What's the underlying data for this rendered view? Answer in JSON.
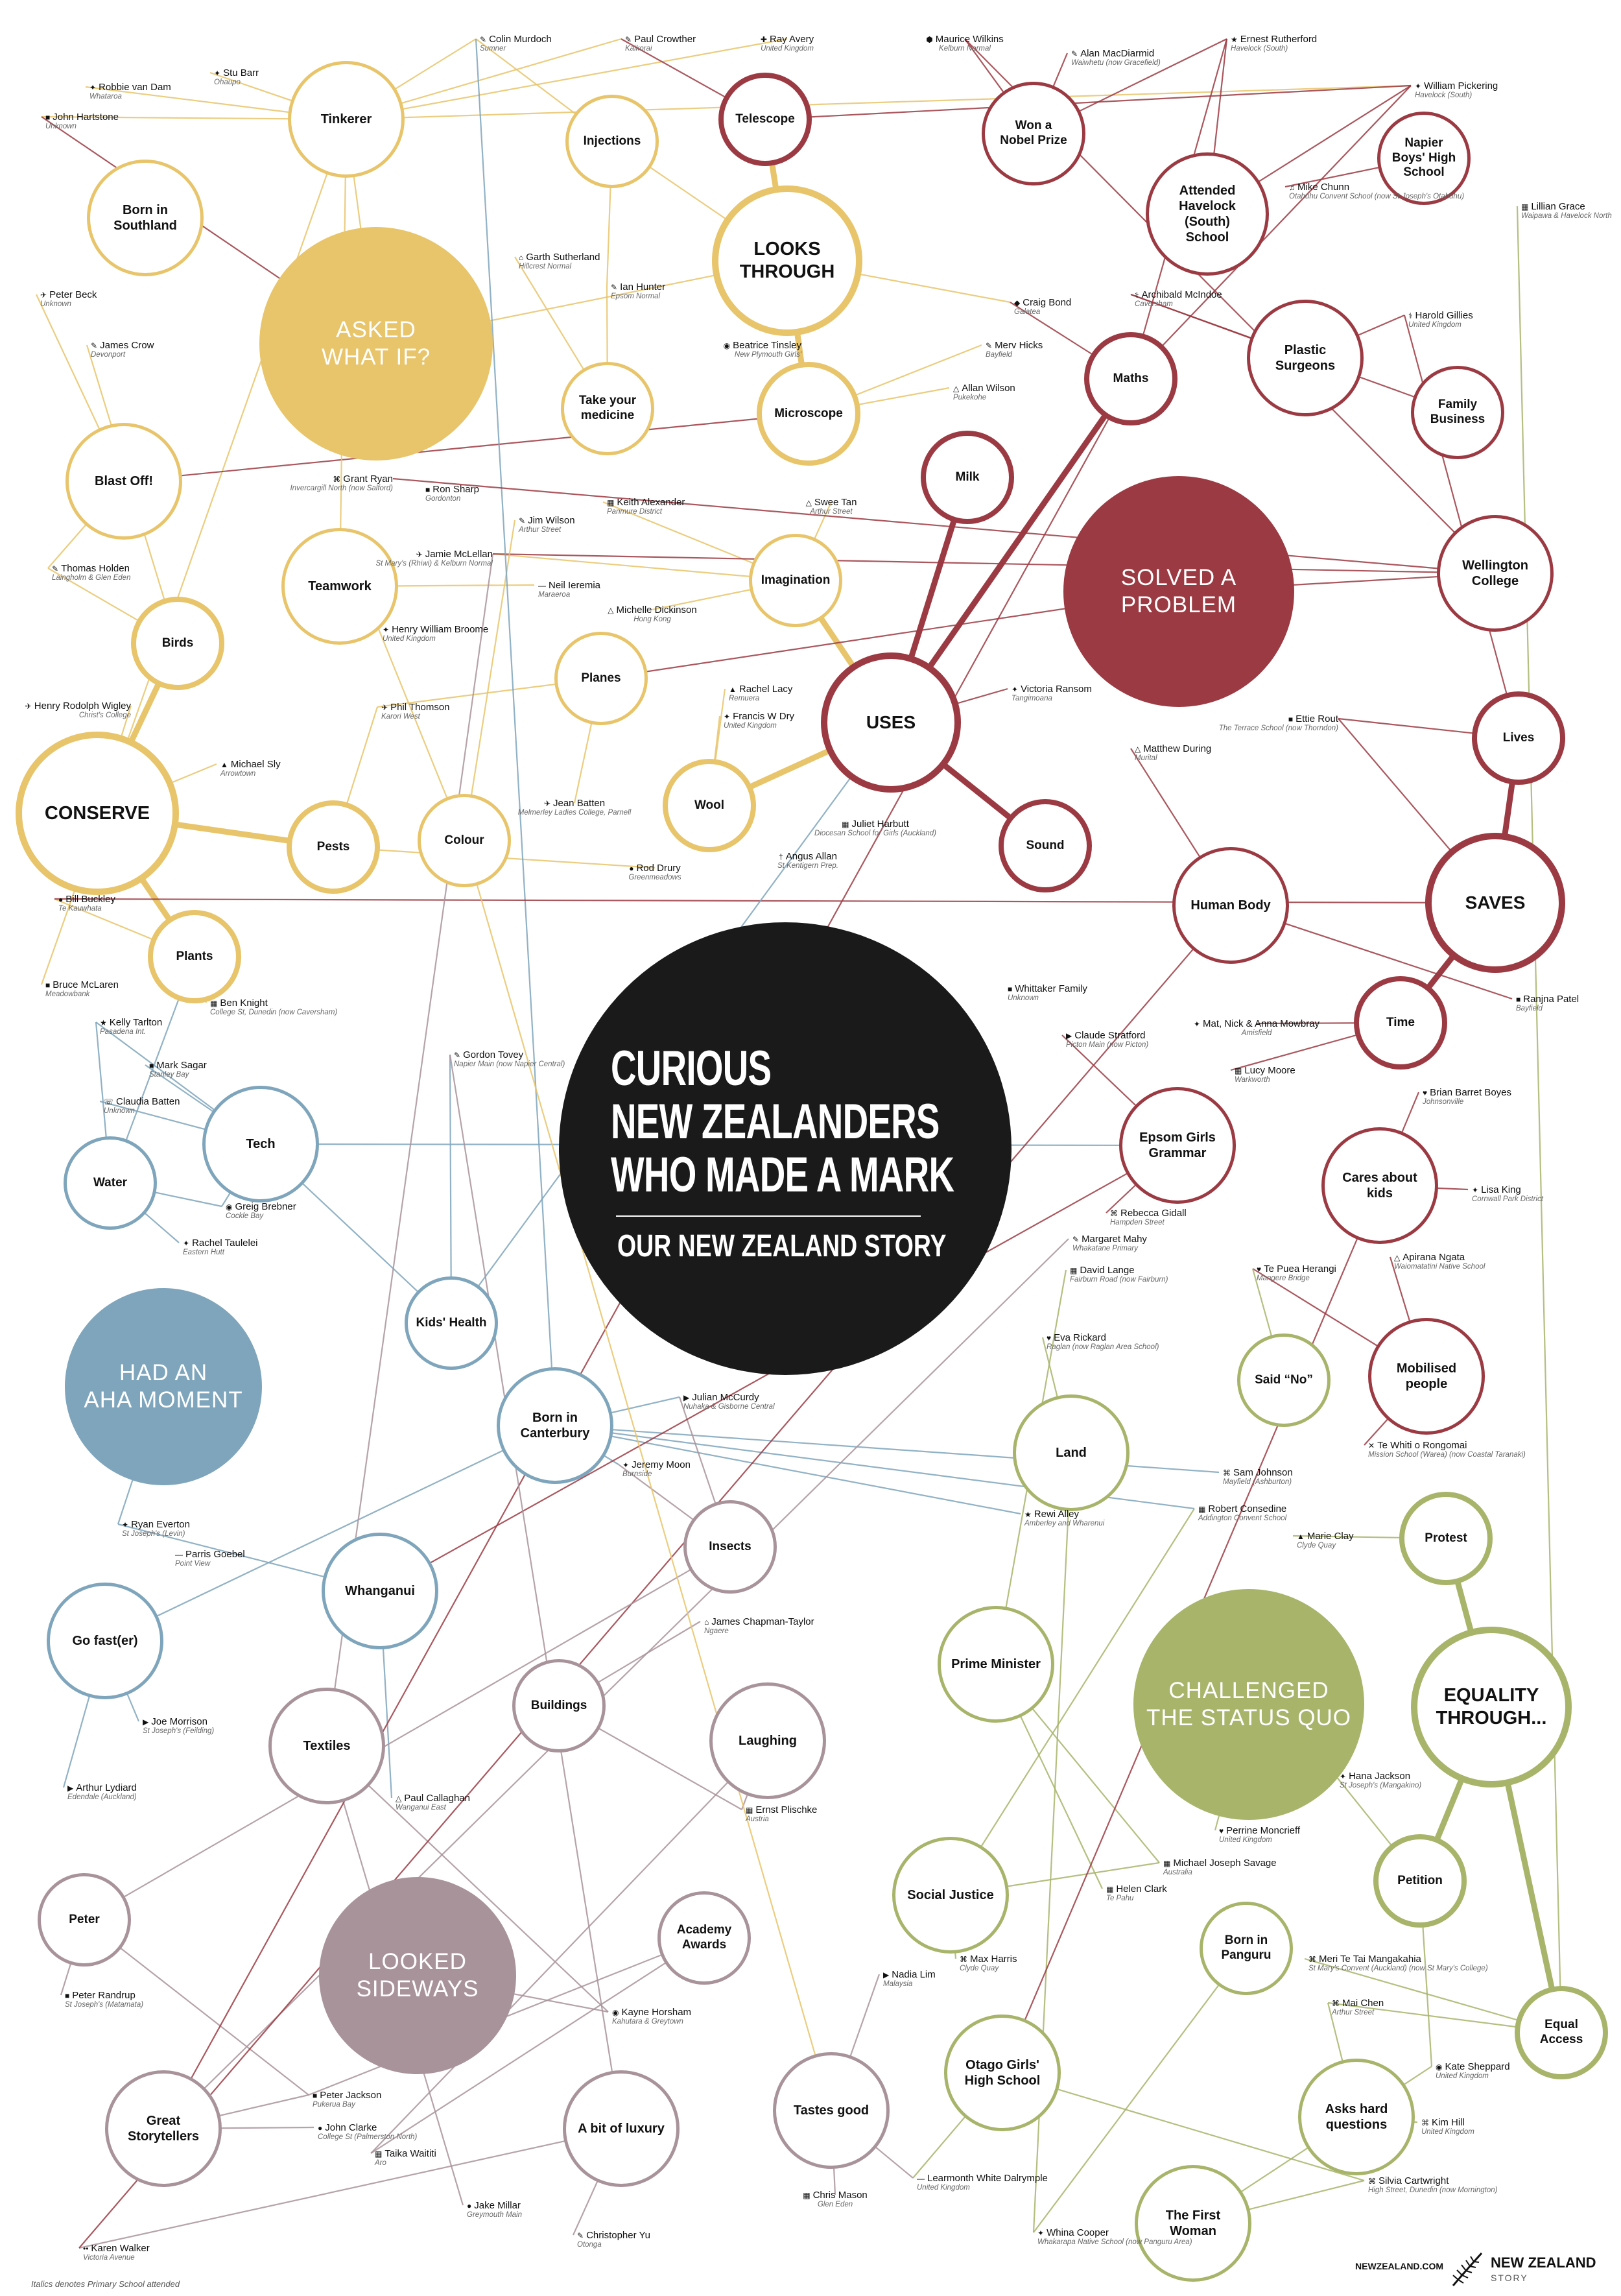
{
  "title": {
    "line1": "CURIOUS",
    "line2": "NEW ZEALANDERS",
    "line3": "WHO MADE A MARK",
    "subtitle": "OUR NEW ZEALAND STORY"
  },
  "footnote": "Italics denotes Primary School attended",
  "site": "NEWZEALAND.COM",
  "brand": {
    "line1": "NEW ZEALAND",
    "line2": "STORY"
  },
  "colors": {
    "yellow": "#e8c46a",
    "red": "#9b3a42",
    "blue": "#7ea5bb",
    "purple": "#a9939b",
    "green": "#a7b46a",
    "title_bg": "#1a1a1a"
  },
  "themes": [
    {
      "id": "asked-what-if",
      "label": "ASKED\nWHAT IF?",
      "color": "yellow"
    },
    {
      "id": "solved-a-problem",
      "label": "SOLVED A\nPROBLEM",
      "color": "red"
    },
    {
      "id": "had-an-aha-moment",
      "label": "HAD AN\nAHA MOMENT",
      "color": "blue"
    },
    {
      "id": "looked-sideways",
      "label": "LOOKED\nSIDEWAYS",
      "color": "purple"
    },
    {
      "id": "challenged-the-status-quo",
      "label": "CHALLENGED\nTHE STATUS QUO",
      "color": "green"
    }
  ],
  "topics": [
    {
      "id": "tinkerer",
      "label": "Tinkerer",
      "color": "yellow"
    },
    {
      "id": "injections",
      "label": "Injections",
      "color": "yellow"
    },
    {
      "id": "telescope",
      "label": "Telescope",
      "color": "red"
    },
    {
      "id": "won-nobel",
      "label": "Won a\nNobel Prize",
      "color": "red"
    },
    {
      "id": "born-southland",
      "label": "Born in\nSouthland",
      "color": "yellow"
    },
    {
      "id": "looks-through",
      "label": "LOOKS\nTHROUGH",
      "color": "yellow"
    },
    {
      "id": "attended-havelock",
      "label": "Attended\nHavelock\n(South)\nSchool",
      "color": "red"
    },
    {
      "id": "napier-boys",
      "label": "Napier\nBoys' High\nSchool",
      "color": "red"
    },
    {
      "id": "take-medicine",
      "label": "Take your\nmedicine",
      "color": "yellow"
    },
    {
      "id": "microscope",
      "label": "Microscope",
      "color": "yellow"
    },
    {
      "id": "maths",
      "label": "Maths",
      "color": "red"
    },
    {
      "id": "plastic-surgeons",
      "label": "Plastic\nSurgeons",
      "color": "red"
    },
    {
      "id": "family-business",
      "label": "Family\nBusiness",
      "color": "red"
    },
    {
      "id": "blast-off",
      "label": "Blast Off!",
      "color": "yellow"
    },
    {
      "id": "milk",
      "label": "Milk",
      "color": "red"
    },
    {
      "id": "teamwork",
      "label": "Teamwork",
      "color": "yellow"
    },
    {
      "id": "imagination",
      "label": "Imagination",
      "color": "yellow"
    },
    {
      "id": "wellington-college",
      "label": "Wellington\nCollege",
      "color": "red"
    },
    {
      "id": "birds",
      "label": "Birds",
      "color": "yellow"
    },
    {
      "id": "planes",
      "label": "Planes",
      "color": "yellow"
    },
    {
      "id": "uses",
      "label": "USES",
      "color": "red"
    },
    {
      "id": "lives",
      "label": "Lives",
      "color": "red"
    },
    {
      "id": "conserve",
      "label": "CONSERVE",
      "color": "yellow"
    },
    {
      "id": "pests",
      "label": "Pests",
      "color": "yellow"
    },
    {
      "id": "colour",
      "label": "Colour",
      "color": "yellow"
    },
    {
      "id": "wool",
      "label": "Wool",
      "color": "yellow"
    },
    {
      "id": "sound",
      "label": "Sound",
      "color": "red"
    },
    {
      "id": "human-body",
      "label": "Human Body",
      "color": "red"
    },
    {
      "id": "saves",
      "label": "SAVES",
      "color": "red"
    },
    {
      "id": "plants",
      "label": "Plants",
      "color": "yellow"
    },
    {
      "id": "time",
      "label": "Time",
      "color": "red"
    },
    {
      "id": "tech",
      "label": "Tech",
      "color": "blue"
    },
    {
      "id": "epsom-girls",
      "label": "Epsom Girls\nGrammar",
      "color": "red"
    },
    {
      "id": "water",
      "label": "Water",
      "color": "blue"
    },
    {
      "id": "cares-about-kids",
      "label": "Cares about\nkids",
      "color": "red"
    },
    {
      "id": "kids-health",
      "label": "Kids' Health",
      "color": "blue"
    },
    {
      "id": "said-no",
      "label": "Said “No”",
      "color": "green"
    },
    {
      "id": "mobilised-people",
      "label": "Mobilised\npeople",
      "color": "red"
    },
    {
      "id": "born-canterbury",
      "label": "Born in\nCanterbury",
      "color": "blue"
    },
    {
      "id": "land",
      "label": "Land",
      "color": "green"
    },
    {
      "id": "insects",
      "label": "Insects",
      "color": "purple"
    },
    {
      "id": "protest",
      "label": "Protest",
      "color": "green"
    },
    {
      "id": "whanganui",
      "label": "Whanganui",
      "color": "blue"
    },
    {
      "id": "go-faster",
      "label": "Go fast(er)",
      "color": "blue"
    },
    {
      "id": "prime-minister",
      "label": "Prime Minister",
      "color": "green"
    },
    {
      "id": "equality-through",
      "label": "EQUALITY\nTHROUGH...",
      "color": "green"
    },
    {
      "id": "buildings",
      "label": "Buildings",
      "color": "purple"
    },
    {
      "id": "textiles",
      "label": "Textiles",
      "color": "purple"
    },
    {
      "id": "laughing",
      "label": "Laughing",
      "color": "purple"
    },
    {
      "id": "social-justice",
      "label": "Social Justice",
      "color": "green"
    },
    {
      "id": "petition",
      "label": "Petition",
      "color": "green"
    },
    {
      "id": "peter",
      "label": "Peter",
      "color": "purple"
    },
    {
      "id": "academy-awards",
      "label": "Academy\nAwards",
      "color": "purple"
    },
    {
      "id": "born-panguru",
      "label": "Born in\nPanguru",
      "color": "green"
    },
    {
      "id": "equal-access",
      "label": "Equal\nAccess",
      "color": "green"
    },
    {
      "id": "otago-girls",
      "label": "Otago Girls'\nHigh School",
      "color": "green"
    },
    {
      "id": "tastes-good",
      "label": "Tastes good",
      "color": "purple"
    },
    {
      "id": "asks-hard-questions",
      "label": "Asks hard\nquestions",
      "color": "green"
    },
    {
      "id": "great-storytellers",
      "label": "Great\nStorytellers",
      "color": "purple"
    },
    {
      "id": "bit-of-luxury",
      "label": "A bit of luxury",
      "color": "purple"
    },
    {
      "id": "first-woman",
      "label": "The First\nWoman",
      "color": "green"
    }
  ],
  "people": [
    {
      "id": "colin-murdoch",
      "name": "Colin Murdoch",
      "school": "Sumner",
      "icon": "✎"
    },
    {
      "id": "paul-crowther",
      "name": "Paul Crowther",
      "school": "Kaikorai",
      "icon": "✎"
    },
    {
      "id": "ray-avery",
      "name": "Ray Avery",
      "school": "United Kingdom",
      "icon": "✚"
    },
    {
      "id": "maurice-wilkins",
      "name": "Maurice Wilkins",
      "school": "Kelburn Normal",
      "icon": "⬢"
    },
    {
      "id": "alan-macdiarmid",
      "name": "Alan MacDiarmid",
      "school": "Waiwhetu (now Gracefield)",
      "icon": "✎"
    },
    {
      "id": "ernest-rutherford",
      "name": "Ernest Rutherford",
      "school": "Havelock (South)",
      "icon": "★"
    },
    {
      "id": "robbie-van-dam",
      "name": "Robbie van Dam",
      "school": "Whataroa",
      "icon": "✦"
    },
    {
      "id": "stu-barr",
      "name": "Stu Barr",
      "school": "Ohaupo",
      "icon": "✦"
    },
    {
      "id": "william-pickering",
      "name": "William Pickering",
      "school": "Havelock (South)",
      "icon": "✦"
    },
    {
      "id": "john-hartstone",
      "name": "John Hartstone",
      "school": "Unknown",
      "icon": "■"
    },
    {
      "id": "mike-chunn",
      "name": "Mike Chunn",
      "school": "Otahuhu Convent School (now St Joseph's Otahuhu)",
      "icon": "♫"
    },
    {
      "id": "lillian-grace",
      "name": "Lillian Grace",
      "school": "Waipawa & Havelock North",
      "icon": "▦"
    },
    {
      "id": "garth-sutherland",
      "name": "Garth Sutherland",
      "school": "Hillcrest Normal",
      "icon": "⌂"
    },
    {
      "id": "ian-hunter",
      "name": "Ian Hunter",
      "school": "Epsom Normal",
      "icon": "✎"
    },
    {
      "id": "peter-beck",
      "name": "Peter Beck",
      "school": "Unknown",
      "icon": "✈"
    },
    {
      "id": "craig-bond",
      "name": "Craig Bond",
      "school": "Galatea",
      "icon": "◆"
    },
    {
      "id": "archibald-mcindoe",
      "name": "Archibald McIndoe",
      "school": "Caversham",
      "icon": "⚕"
    },
    {
      "id": "harold-gillies",
      "name": "Harold Gillies",
      "school": "United Kingdom",
      "icon": "⚕"
    },
    {
      "id": "james-crow",
      "name": "James Crow",
      "school": "Devonport",
      "icon": "✎"
    },
    {
      "id": "beatrice-tinsley",
      "name": "Beatrice Tinsley",
      "school": "New Plymouth Girls'",
      "icon": "◉"
    },
    {
      "id": "merv-hicks",
      "name": "Merv Hicks",
      "school": "Bayfield",
      "icon": "✎"
    },
    {
      "id": "allan-wilson",
      "name": "Allan Wilson",
      "school": "Pukekohe",
      "icon": "△"
    },
    {
      "id": "grant-ryan",
      "name": "Grant Ryan",
      "school": "Invercargill North (now Salford)",
      "icon": "⌘"
    },
    {
      "id": "ron-sharp",
      "name": "Ron Sharp",
      "school": "Gordonton",
      "icon": "■"
    },
    {
      "id": "keith-alexander",
      "name": "Keith Alexander",
      "school": "Panmure District",
      "icon": "▦"
    },
    {
      "id": "swee-tan",
      "name": "Swee Tan",
      "school": "Arthur Street",
      "icon": "△"
    },
    {
      "id": "jim-wilson",
      "name": "Jim Wilson",
      "school": "Arthur Street",
      "icon": "✎"
    },
    {
      "id": "thomas-holden",
      "name": "Thomas Holden",
      "school": "Laingholm & Glen Eden",
      "icon": "✎"
    },
    {
      "id": "jamie-mclellan",
      "name": "Jamie McLellan",
      "school": "St Mary's (Rhiwi) & Kelburn Normal",
      "icon": "✈"
    },
    {
      "id": "neil-ieremia",
      "name": "Neil Ieremia",
      "school": "Maraeroa",
      "icon": "—"
    },
    {
      "id": "michelle-dickinson",
      "name": "Michelle Dickinson",
      "school": "Hong Kong",
      "icon": "△"
    },
    {
      "id": "henry-william-broome",
      "name": "Henry William Broome",
      "school": "United Kingdom",
      "icon": "✦"
    },
    {
      "id": "rachel-lacy",
      "name": "Rachel Lacy",
      "school": "Remuera",
      "icon": "▲"
    },
    {
      "id": "victoria-ransom",
      "name": "Victoria Ransom",
      "school": "Tangimoana",
      "icon": "✦"
    },
    {
      "id": "francis-w-dry",
      "name": "Francis W Dry",
      "school": "United Kingdom",
      "icon": "✦"
    },
    {
      "id": "ettie-rout",
      "name": "Ettie Rout",
      "school": "The Terrace School (now Thorndon)",
      "icon": "■"
    },
    {
      "id": "henry-rodolph-wigley",
      "name": "Henry Rodolph Wigley",
      "school": "Christ's College",
      "icon": "✈"
    },
    {
      "id": "phil-thomson",
      "name": "Phil Thomson",
      "school": "Karori West",
      "icon": "✈"
    },
    {
      "id": "michael-sly",
      "name": "Michael Sly",
      "school": "Arrowtown",
      "icon": "▲"
    },
    {
      "id": "matthew-during",
      "name": "Matthew During",
      "school": "Murital",
      "icon": "△"
    },
    {
      "id": "jean-batten",
      "name": "Jean Batten",
      "school": "Melmerley Ladies College, Parnell",
      "icon": "✈"
    },
    {
      "id": "juliet-harbutt",
      "name": "Juliet Harbutt",
      "school": "Diocesan School for Girls (Auckland)",
      "icon": "▦"
    },
    {
      "id": "angus-allan",
      "name": "Angus Allan",
      "school": "St Kentigern Prep.",
      "icon": "†"
    },
    {
      "id": "rod-drury",
      "name": "Rod Drury",
      "school": "Greenmeadows",
      "icon": "●"
    },
    {
      "id": "bill-buckley",
      "name": "Bill Buckley",
      "school": "Te Kauwhata",
      "icon": "●"
    },
    {
      "id": "bruce-mclaren",
      "name": "Bruce McLaren",
      "school": "Meadowbank",
      "icon": "■"
    },
    {
      "id": "ben-knight",
      "name": "Ben Knight",
      "school": "College St, Dunedin (now Caversham)",
      "icon": "▦"
    },
    {
      "id": "whittaker-family",
      "name": "Whittaker Family",
      "school": "Unknown",
      "icon": "■"
    },
    {
      "id": "ranjna-patel",
      "name": "Ranjna Patel",
      "school": "Bayfield",
      "icon": "■"
    },
    {
      "id": "kelly-tarlton",
      "name": "Kelly Tarlton",
      "school": "Pasadena Int.",
      "icon": "★"
    },
    {
      "id": "claude-stratford",
      "name": "Claude Stratford",
      "school": "Picton Main (now Picton)",
      "icon": "▶"
    },
    {
      "id": "mat-nick-anna-mowbray",
      "name": "Mat, Nick & Anna Mowbray",
      "school": "Amisfield",
      "icon": "✦"
    },
    {
      "id": "mark-sagar",
      "name": "Mark Sagar",
      "school": "Stanley Bay",
      "icon": "■"
    },
    {
      "id": "gordon-tovey",
      "name": "Gordon Tovey",
      "school": "Napier Main (now Napier Central)",
      "icon": "✎"
    },
    {
      "id": "lucy-moore",
      "name": "Lucy Moore",
      "school": "Warkworth",
      "icon": "▦"
    },
    {
      "id": "claudia-batten",
      "name": "Claudia Batten",
      "school": "Unknown",
      "icon": "☏"
    },
    {
      "id": "brian-barret-boyes",
      "name": "Brian Barret Boyes",
      "school": "Johnsonville",
      "icon": "♥"
    },
    {
      "id": "greig-brebner",
      "name": "Greig Brebner",
      "school": "Cockle Bay",
      "icon": "◉"
    },
    {
      "id": "rebecca-gidall",
      "name": "Rebecca Gidall",
      "school": "Hampden Street",
      "icon": "⌘"
    },
    {
      "id": "lisa-king",
      "name": "Lisa King",
      "school": "Cornwall Park District",
      "icon": "✦"
    },
    {
      "id": "rachel-taulelei",
      "name": "Rachel Taulelei",
      "school": "Eastern Hutt",
      "icon": "✦"
    },
    {
      "id": "margaret-mahy",
      "name": "Margaret Mahy",
      "school": "Whakatane Primary",
      "icon": "✎"
    },
    {
      "id": "david-lange",
      "name": "David Lange",
      "school": "Fairburn Road (now Fairburn)",
      "icon": "▦"
    },
    {
      "id": "te-puea-herangi",
      "name": "Te Puea Herangi",
      "school": "Mangere Bridge",
      "icon": "♥"
    },
    {
      "id": "apirana-ngata",
      "name": "Apirana Ngata",
      "school": "Waiomatatini Native School",
      "icon": "△"
    },
    {
      "id": "eva-rickard",
      "name": "Eva Rickard",
      "school": "Raglan (now Raglan Area School)",
      "icon": "♥"
    },
    {
      "id": "julian-mccurdy",
      "name": "Julian McCurdy",
      "school": "Nuhaka & Gisborne Central",
      "icon": "▶"
    },
    {
      "id": "te-whiti-o-rongomai",
      "name": "Te Whiti o Rongomai",
      "school": "Mission School (Warea) (now Coastal Taranaki)",
      "icon": "✕"
    },
    {
      "id": "sam-johnson",
      "name": "Sam Johnson",
      "school": "Mayfield (Ashburton)",
      "icon": "⌘"
    },
    {
      "id": "jeremy-moon",
      "name": "Jeremy Moon",
      "school": "Burnside",
      "icon": "✦"
    },
    {
      "id": "rewi-alley",
      "name": "Rewi Alley",
      "school": "Amberley and Wharenui",
      "icon": "★"
    },
    {
      "id": "robert-consedine",
      "name": "Robert Consedine",
      "school": "Addington Convent School",
      "icon": "▦"
    },
    {
      "id": "ryan-everton",
      "name": "Ryan Everton",
      "school": "St Joseph's (Levin)",
      "icon": "✦"
    },
    {
      "id": "marie-clay",
      "name": "Marie Clay",
      "school": "Clyde Quay",
      "icon": "▲"
    },
    {
      "id": "parris-goebel",
      "name": "Parris Goebel",
      "school": "Point View",
      "icon": "—"
    },
    {
      "id": "james-chapman-taylor",
      "name": "James Chapman-Taylor",
      "school": "Ngaere",
      "icon": "⌂"
    },
    {
      "id": "joe-morrison",
      "name": "Joe Morrison",
      "school": "St Joseph's (Feilding)",
      "icon": "▶"
    },
    {
      "id": "arthur-lydiard",
      "name": "Arthur Lydiard",
      "school": "Edendale (Auckland)",
      "icon": "▶"
    },
    {
      "id": "ernst-plischke",
      "name": "Ernst Plischke",
      "school": "Austria",
      "icon": "▦"
    },
    {
      "id": "hana-jackson",
      "name": "Hana Jackson",
      "school": "St Joseph's (Mangakino)",
      "icon": "✦"
    },
    {
      "id": "paul-callaghan",
      "name": "Paul Callaghan",
      "school": "Wanganui East",
      "icon": "△"
    },
    {
      "id": "perrine-moncrieff",
      "name": "Perrine Moncrieff",
      "school": "United Kingdom",
      "icon": "♥"
    },
    {
      "id": "michael-joseph-savage",
      "name": "Michael Joseph Savage",
      "school": "Australia",
      "icon": "▦"
    },
    {
      "id": "helen-clark",
      "name": "Helen Clark",
      "school": "Te Pahu",
      "icon": "▦"
    },
    {
      "id": "max-harris",
      "name": "Max Harris",
      "school": "Clyde Quay",
      "icon": "⌘"
    },
    {
      "id": "meri-te-tai-mangakahia",
      "name": "Meri Te Tai Mangakahia",
      "school": "St Mary's Convent (Auckland) (now St Mary's College)",
      "icon": "⌘"
    },
    {
      "id": "nadia-lim",
      "name": "Nadia Lim",
      "school": "Malaysia",
      "icon": "▶"
    },
    {
      "id": "mai-chen",
      "name": "Mai Chen",
      "school": "Arthur Street",
      "icon": "⌘"
    },
    {
      "id": "peter-randrup",
      "name": "Peter Randrup",
      "school": "St Joseph's (Matamata)",
      "icon": "■"
    },
    {
      "id": "kayne-horsham",
      "name": "Kayne Horsham",
      "school": "Kahutara & Greytown",
      "icon": "◉"
    },
    {
      "id": "kate-sheppard",
      "name": "Kate Sheppard",
      "school": "United Kingdom",
      "icon": "◉"
    },
    {
      "id": "peter-jackson",
      "name": "Peter Jackson",
      "school": "Pukerua Bay",
      "icon": "■"
    },
    {
      "id": "kim-hill",
      "name": "Kim Hill",
      "school": "United Kingdom",
      "icon": "⌘"
    },
    {
      "id": "john-clarke",
      "name": "John Clarke",
      "school": "College St (Palmerston North)",
      "icon": "●"
    },
    {
      "id": "taika-waititi",
      "name": "Taika Waititi",
      "school": "Aro",
      "icon": "▦"
    },
    {
      "id": "learmonth-white-dalrymple",
      "name": "Learmonth White Dalrymple",
      "school": "United Kingdom",
      "icon": "—"
    },
    {
      "id": "silvia-cartwright",
      "name": "Silvia Cartwright",
      "school": "High Street, Dunedin (now Mornington)",
      "icon": "⌘"
    },
    {
      "id": "chris-mason",
      "name": "Chris Mason",
      "school": "Glen Eden",
      "icon": "▦"
    },
    {
      "id": "jake-millar",
      "name": "Jake Millar",
      "school": "Greymouth Main",
      "icon": "●"
    },
    {
      "id": "christopher-yu",
      "name": "Christopher Yu",
      "school": "Otonga",
      "icon": "✎"
    },
    {
      "id": "whina-cooper",
      "name": "Whina Cooper",
      "school": "Whakarapa Native School (now Panguru Area)",
      "icon": "✦"
    },
    {
      "id": "karen-walker",
      "name": "Karen Walker",
      "school": "Victoria Avenue",
      "icon": "••"
    }
  ]
}
